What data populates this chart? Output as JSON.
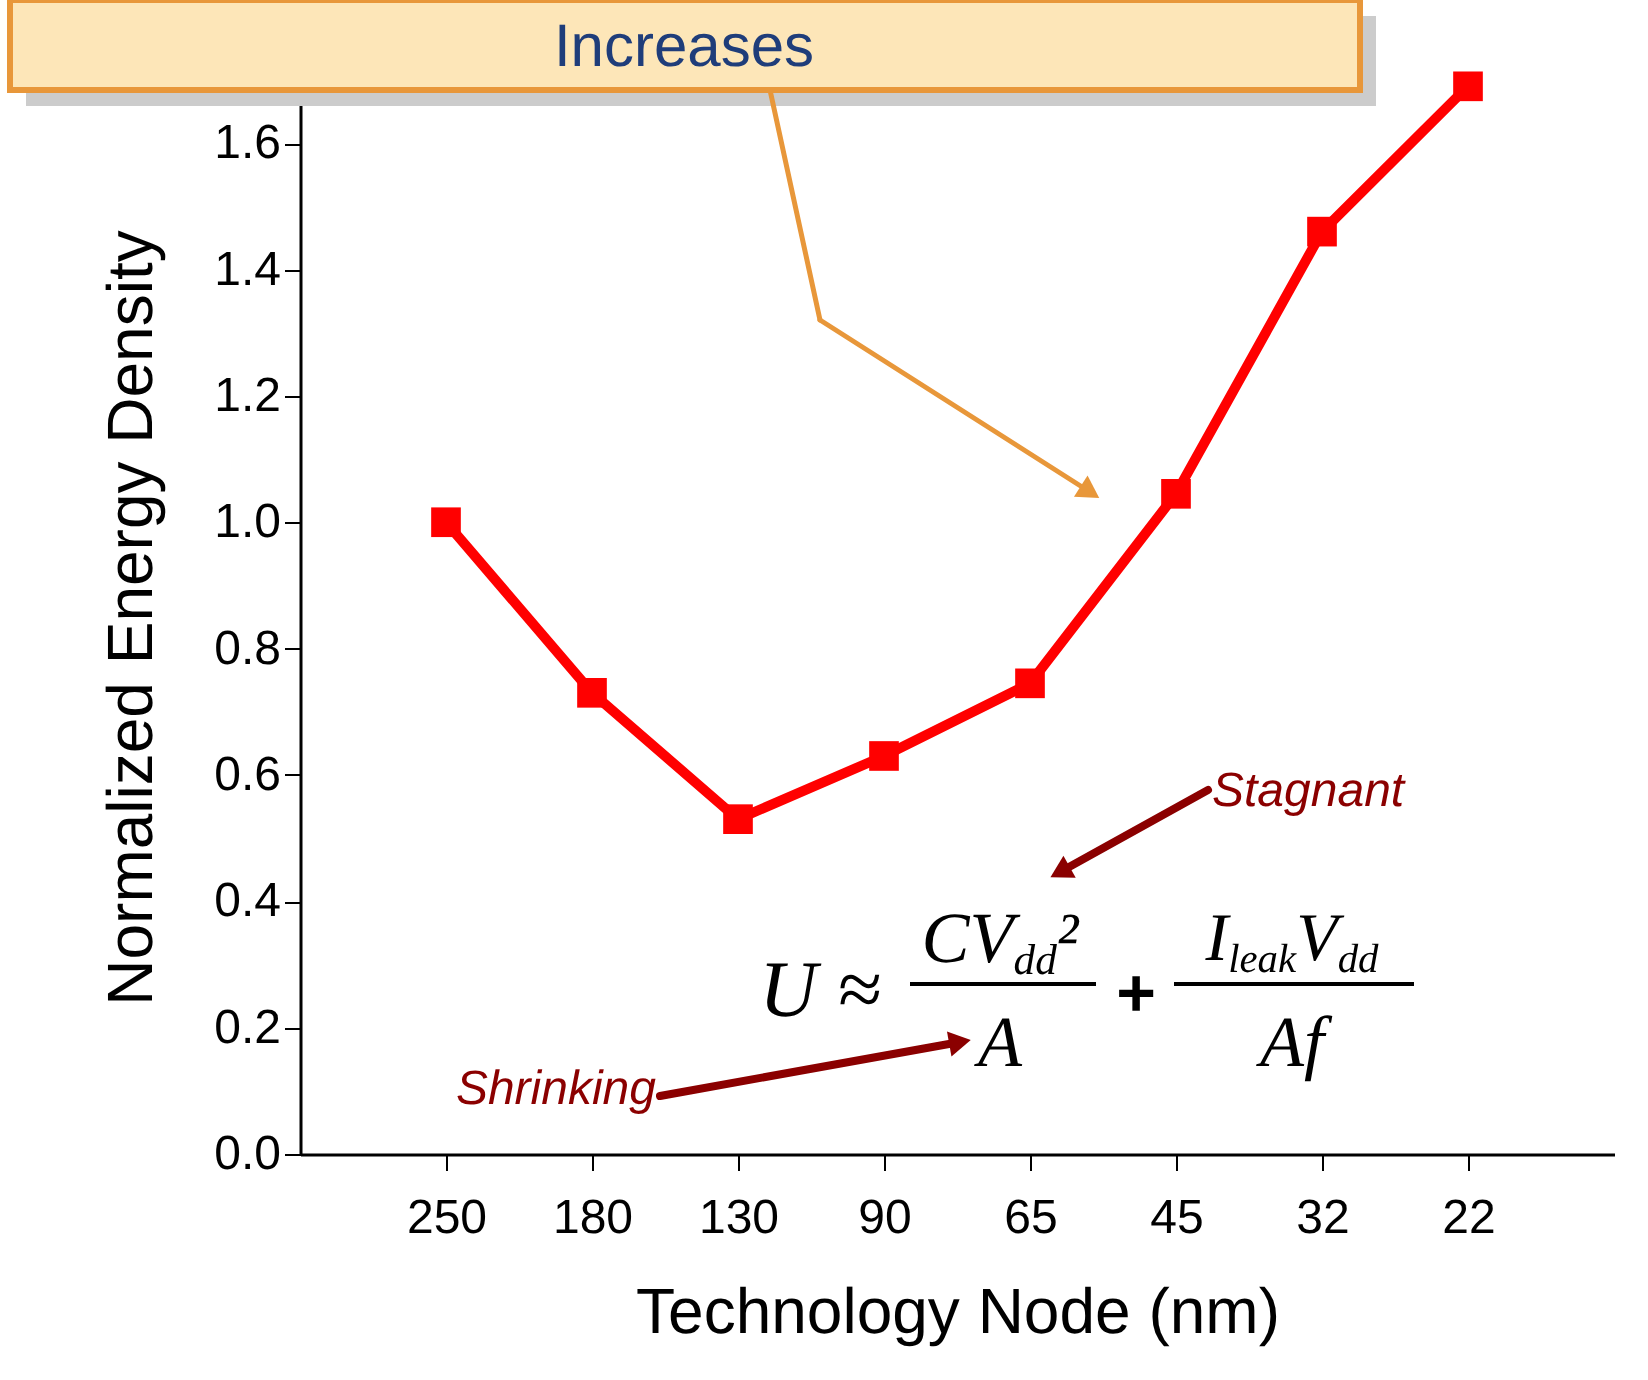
{
  "chart_data": {
    "type": "line",
    "xlabel": "Technology Node (nm)",
    "ylabel": "Normalized Energy Density",
    "categories": [
      "250",
      "180",
      "130",
      "90",
      "65",
      "45",
      "32",
      "22"
    ],
    "series": [
      {
        "color": "#ff0000",
        "values": [
          1.0,
          0.73,
          0.53,
          0.63,
          0.745,
          1.045,
          1.46,
          1.69
        ]
      }
    ],
    "ylim": [
      0,
      1.7
    ],
    "yticks": [
      {
        "value": 0,
        "label": "0.0"
      },
      0.2,
      0.4,
      0.6,
      0.8,
      {
        "value": 1,
        "label": "1.0"
      },
      1.2,
      1.4,
      1.6
    ],
    "marker": "square",
    "line_style": "solid",
    "grid": false,
    "annotations": [
      "Increases",
      "Stagnant",
      "Shrinking",
      "U ≈",
      "CV$_{dd}$²",
      "A",
      "+",
      "I$_{leak}$V$_{dd}$",
      "Af"
    ]
  }
}
